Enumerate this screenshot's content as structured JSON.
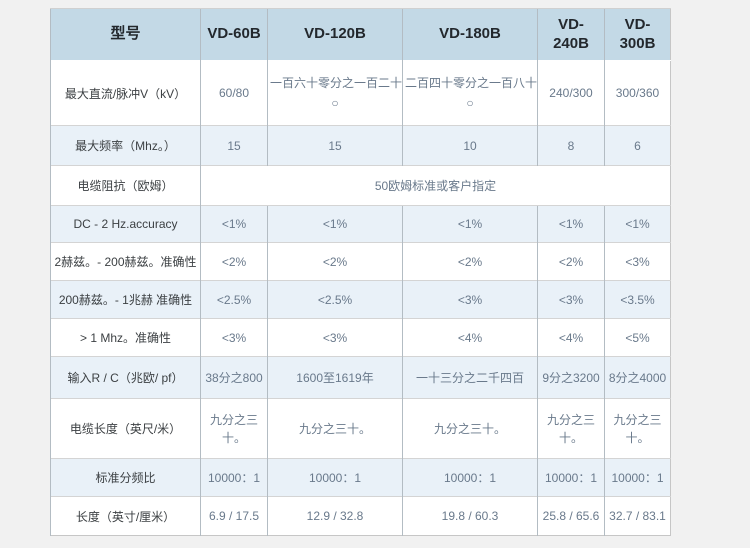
{
  "page": {
    "background_color": "#f1f1f1"
  },
  "table": {
    "header": {
      "background_color": "#c3d9e6",
      "columns": [
        "型号",
        "VD-60B",
        "VD-120B",
        "VD-180B",
        "VD-240B",
        "VD-300B"
      ]
    },
    "stripe_color": "#e9f1f8",
    "rows": [
      {
        "label": "最大直流/脉冲V（kV）",
        "cells": [
          "60/80",
          "一百六十零分之一百二十\n○",
          "二百四十零分之一百八十\n○",
          "240/300",
          "300/360"
        ]
      },
      {
        "label": "最大频率（Mhz。）",
        "cells": [
          "15",
          "15",
          "10",
          "8",
          "6"
        ]
      },
      {
        "label": "电缆阻抗（欧姆）",
        "colspan": 5,
        "cells": [
          "50欧姆标准或客户指定"
        ]
      },
      {
        "label": "DC - 2 Hz.accuracy",
        "cells": [
          "<1%",
          "<1%",
          "<1%",
          "<1%",
          "<1%"
        ]
      },
      {
        "label": "2赫兹。- 200赫兹。准确性",
        "cells": [
          "<2%",
          "<2%",
          "<2%",
          "<2%",
          "<3%"
        ]
      },
      {
        "label": "200赫兹。- 1兆赫 准确性",
        "cells": [
          "<2.5%",
          "<2.5%",
          "<3%",
          "<3%",
          "<3.5%"
        ]
      },
      {
        "label": "> 1 Mhz。准确性",
        "cells": [
          "<3%",
          "<3%",
          "<4%",
          "<4%",
          "<5%"
        ]
      },
      {
        "label": "输入R / C（兆欧/ pf）",
        "cells": [
          "38分之800",
          "1600至1619年",
          "一十三分之二千四百",
          "9分之3200",
          "8分之4000"
        ]
      },
      {
        "label": "电缆长度（英尺/米）",
        "cells": [
          "九分之三十。",
          "九分之三十。",
          "九分之三十。",
          "九分之三十。",
          "九分之三十。"
        ]
      },
      {
        "label": "标准分频比",
        "cells": [
          "10000：1",
          "10000：1",
          "10000：1",
          "10000：1",
          "10000：1"
        ]
      },
      {
        "label": "长度（英寸/厘米）",
        "cells": [
          "6.9 / 17.5",
          "12.9 / 32.8",
          "19.8 / 60.3",
          "25.8 / 65.6",
          "32.7 / 83.1"
        ]
      }
    ]
  }
}
